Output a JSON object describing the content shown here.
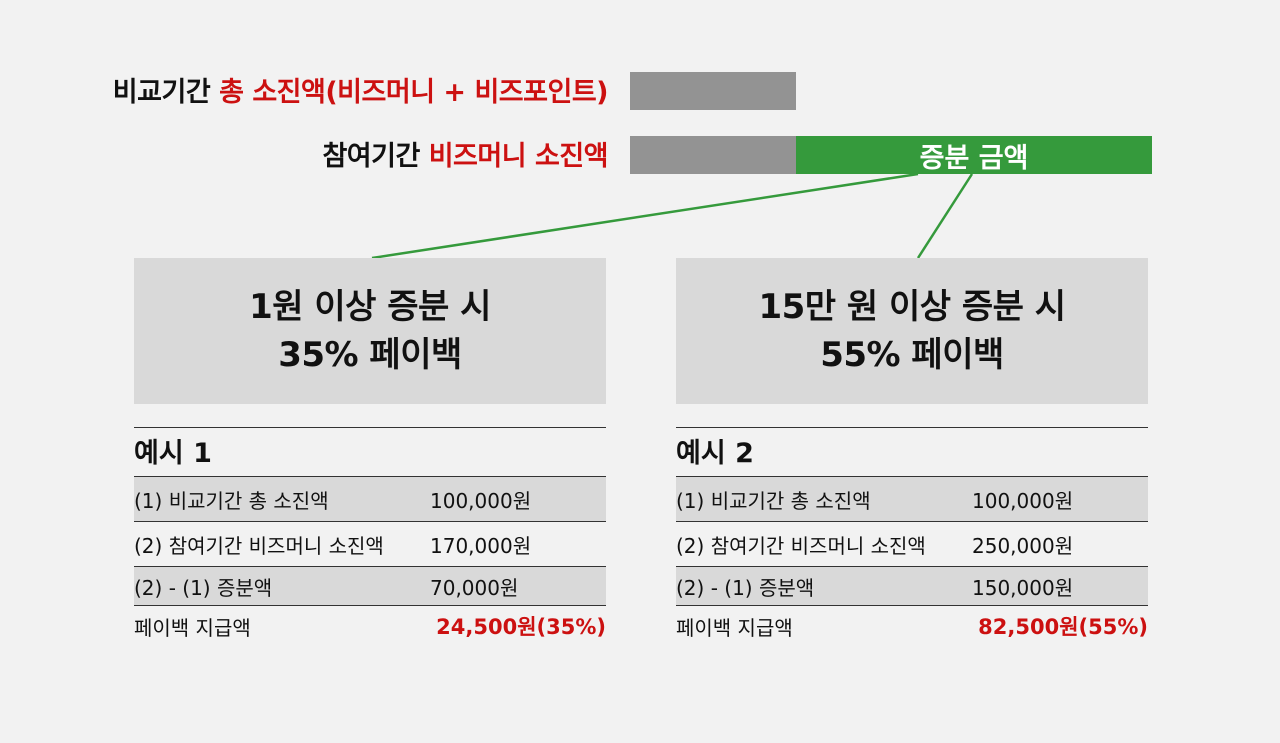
{
  "rows": {
    "comparison": {
      "prefix": "비교기간",
      "highlight": "총 소진액(비즈머니 + 비즈포인트)"
    },
    "participation": {
      "prefix": "참여기간",
      "highlight": "비즈머니 소진액"
    },
    "increase_label": "증분 금액"
  },
  "tiers": [
    {
      "line1": "1원 이상 증분 시",
      "line2": "35% 페이백"
    },
    {
      "line1": "15만 원 이상 증분 시",
      "line2": "55% 페이백"
    }
  ],
  "examples": [
    {
      "title": "예시 1",
      "rows": [
        {
          "label": "(1) 비교기간 총 소진액",
          "value": "100,000원"
        },
        {
          "label": "(2) 참여기간 비즈머니 소진액",
          "value": "170,000원"
        },
        {
          "label": "(2) - (1) 증분액",
          "value": "70,000원"
        },
        {
          "label": "페이백 지급액",
          "value": "24,500원(35%)"
        }
      ]
    },
    {
      "title": "예시 2",
      "rows": [
        {
          "label": "(1) 비교기간 총 소진액",
          "value": "100,000원"
        },
        {
          "label": "(2) 참여기간 비즈머니 소진액",
          "value": "250,000원"
        },
        {
          "label": "(2) - (1) 증분액",
          "value": "150,000원"
        },
        {
          "label": "페이백 지급액",
          "value": "82,500원(55%)"
        }
      ]
    }
  ],
  "colors": {
    "accent_red": "#cc1111",
    "increase_green": "#359a3c",
    "bar_gray": "#939393"
  }
}
